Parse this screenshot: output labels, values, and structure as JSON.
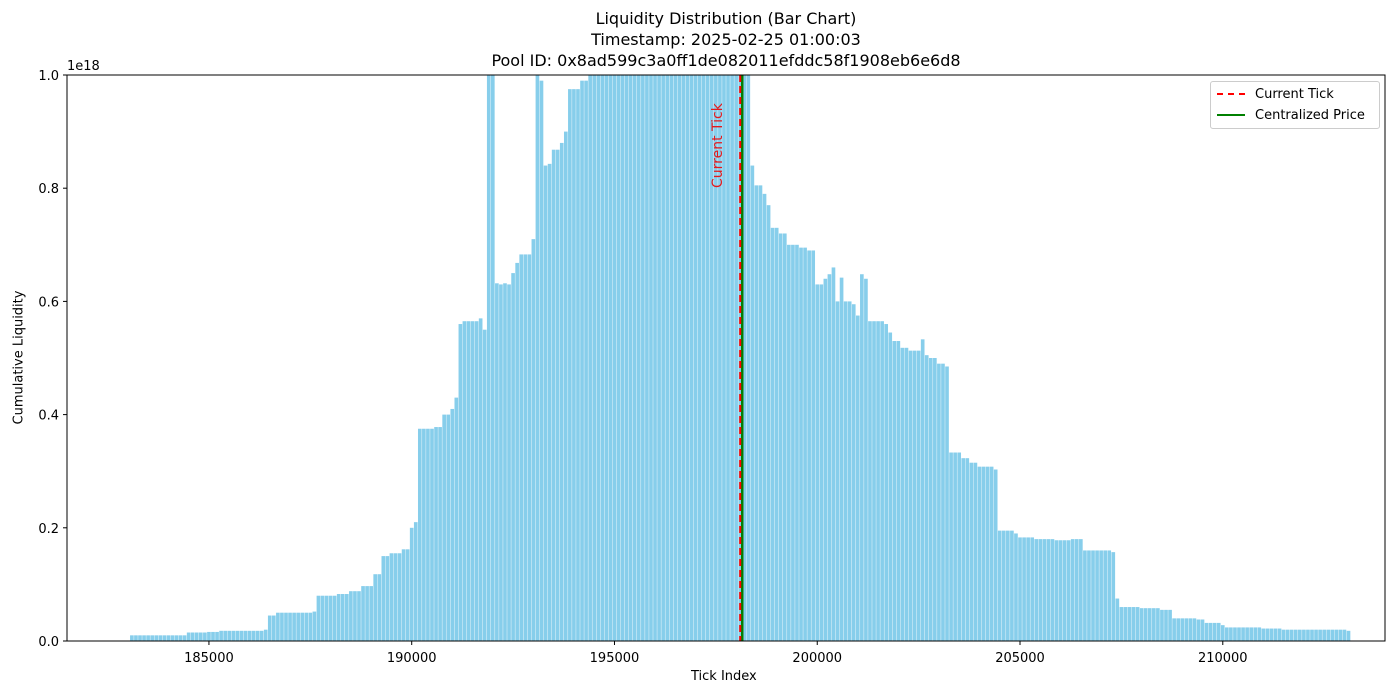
{
  "chart_data": {
    "type": "bar",
    "title": "Liquidity Distribution (Bar Chart)",
    "subtitle_lines": [
      "Timestamp: 2025-02-25 01:00:03",
      "Pool ID: 0x8ad599c3a0ff1de082011efddc58f1908eb6e6d8"
    ],
    "xlabel": "Tick Index",
    "ylabel": "Cumulative Liquidity",
    "y_scale_label": "1e18",
    "xlim": [
      181500,
      214000
    ],
    "ylim": [
      0,
      1.0
    ],
    "x_ticks": [
      185000,
      190000,
      195000,
      200000,
      205000,
      210000
    ],
    "x_tick_labels": [
      "185000",
      "190000",
      "195000",
      "200000",
      "205000",
      "210000"
    ],
    "y_ticks": [
      0,
      0.2,
      0.4,
      0.6,
      0.8,
      1.0
    ],
    "y_tick_labels": [
      "0.0",
      "0.2",
      "0.4",
      "0.6",
      "0.8",
      "1.0"
    ],
    "grid": false,
    "bar_color": "#87CEEB",
    "bar_width_ticks": 90,
    "bar_values_points": [
      [
        183100,
        0.01
      ],
      [
        184000,
        0.01
      ],
      [
        184500,
        0.015
      ],
      [
        185000,
        0.016
      ],
      [
        185300,
        0.018
      ],
      [
        185500,
        0.018
      ],
      [
        186400,
        0.02
      ],
      [
        186500,
        0.045
      ],
      [
        186700,
        0.05
      ],
      [
        187600,
        0.052
      ],
      [
        187700,
        0.08
      ],
      [
        188200,
        0.083
      ],
      [
        188500,
        0.088
      ],
      [
        188800,
        0.097
      ],
      [
        189100,
        0.118
      ],
      [
        189300,
        0.15
      ],
      [
        189500,
        0.155
      ],
      [
        189800,
        0.162
      ],
      [
        190000,
        0.2
      ],
      [
        190100,
        0.21
      ],
      [
        190200,
        0.375
      ],
      [
        190600,
        0.378
      ],
      [
        190800,
        0.4
      ],
      [
        191000,
        0.41
      ],
      [
        191100,
        0.43
      ],
      [
        191200,
        0.56
      ],
      [
        191300,
        0.565
      ],
      [
        191700,
        0.57
      ],
      [
        191800,
        0.55
      ],
      [
        192000,
        1.0
      ],
      [
        192200,
        0.63
      ],
      [
        192500,
        0.65
      ],
      [
        192600,
        0.668
      ],
      [
        192700,
        0.683
      ],
      [
        193000,
        0.71
      ],
      [
        193200,
        0.99
      ],
      [
        193300,
        0.84
      ],
      [
        193500,
        0.868
      ],
      [
        193700,
        0.88
      ],
      [
        193800,
        0.9
      ],
      [
        193900,
        0.975
      ],
      [
        194200,
        0.99
      ],
      [
        194400,
        1.0
      ],
      [
        198000,
        1.0
      ],
      [
        198300,
        1.0
      ],
      [
        198400,
        0.84
      ],
      [
        198500,
        0.805
      ],
      [
        198700,
        0.79
      ],
      [
        198800,
        0.77
      ],
      [
        198900,
        0.73
      ],
      [
        199100,
        0.72
      ],
      [
        199300,
        0.7
      ],
      [
        199600,
        0.695
      ],
      [
        199800,
        0.69
      ],
      [
        200000,
        0.63
      ],
      [
        200200,
        0.64
      ],
      [
        200400,
        0.66
      ],
      [
        200500,
        0.6
      ],
      [
        200900,
        0.595
      ],
      [
        201000,
        0.575
      ],
      [
        201300,
        0.565
      ],
      [
        201700,
        0.56
      ],
      [
        201800,
        0.545
      ],
      [
        201900,
        0.53
      ],
      [
        202100,
        0.518
      ],
      [
        202300,
        0.513
      ],
      [
        202600,
        0.505
      ],
      [
        202800,
        0.5
      ],
      [
        203000,
        0.49
      ],
      [
        203200,
        0.485
      ],
      [
        203300,
        0.333
      ],
      [
        203600,
        0.323
      ],
      [
        203800,
        0.315
      ],
      [
        204000,
        0.308
      ],
      [
        204400,
        0.303
      ],
      [
        204500,
        0.195
      ],
      [
        204900,
        0.19
      ],
      [
        205000,
        0.183
      ],
      [
        205400,
        0.18
      ],
      [
        205900,
        0.178
      ],
      [
        206300,
        0.18
      ],
      [
        206600,
        0.16
      ],
      [
        207300,
        0.157
      ],
      [
        207400,
        0.075
      ],
      [
        207500,
        0.06
      ],
      [
        208000,
        0.058
      ],
      [
        208500,
        0.055
      ],
      [
        208800,
        0.04
      ],
      [
        209400,
        0.038
      ],
      [
        209600,
        0.032
      ],
      [
        210000,
        0.028
      ],
      [
        210100,
        0.024
      ],
      [
        211000,
        0.022
      ],
      [
        211500,
        0.02
      ],
      [
        213100,
        0.018
      ]
    ],
    "bar_overrides": [
      [
        191900,
        1.0
      ],
      [
        192300,
        0.632
      ],
      [
        192100,
        0.632
      ],
      [
        193100,
        1.0
      ],
      [
        193400,
        0.843
      ],
      [
        201100,
        0.648
      ],
      [
        200600,
        0.642
      ],
      [
        200300,
        0.648
      ],
      [
        201200,
        0.64
      ],
      [
        202600,
        0.533
      ]
    ],
    "current_tick": 198100,
    "centralized_price_tick": 198150,
    "current_tick_annotation": "Current Tick",
    "current_tick_color": "#FF0000",
    "centralized_price_color": "#008000",
    "legend": {
      "placement": "top-right",
      "entries": [
        "Current Tick",
        "Centralized Price"
      ]
    }
  }
}
